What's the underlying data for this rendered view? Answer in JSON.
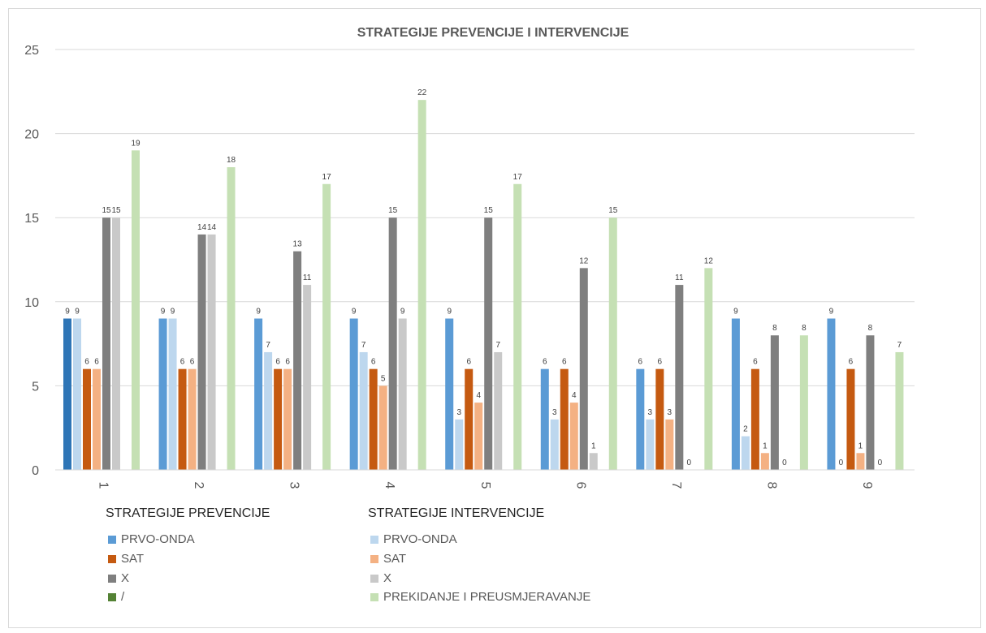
{
  "chart_data": {
    "type": "bar",
    "title": "STRATEGIJE PREVENCIJE I INTERVENCIJE",
    "xlabel": "",
    "ylabel": "",
    "ylim": [
      0,
      25
    ],
    "yticks": [
      "0",
      "5",
      "10",
      "15",
      "20",
      "25"
    ],
    "categories": [
      "1",
      "2",
      "3",
      "4",
      "5",
      "6",
      "7",
      "8",
      "9"
    ],
    "grid": true,
    "legend_position": "bottom",
    "series": [
      {
        "name": "PRVO-ONDA",
        "group": "prevention",
        "color": "#5b9bd5",
        "values": [
          9,
          9,
          9,
          9,
          9,
          6,
          6,
          9,
          9
        ]
      },
      {
        "name": "PRVO-ONDA",
        "group": "intervention",
        "color": "#bdd7ee",
        "values": [
          9,
          9,
          7,
          7,
          3,
          3,
          3,
          2,
          0
        ]
      },
      {
        "name": "SAT",
        "group": "prevention",
        "color": "#c55a11",
        "values": [
          6,
          6,
          6,
          6,
          6,
          6,
          6,
          6,
          6
        ]
      },
      {
        "name": "SAT",
        "group": "intervention",
        "color": "#f4b183",
        "values": [
          6,
          6,
          6,
          5,
          4,
          4,
          3,
          1,
          1
        ]
      },
      {
        "name": "X",
        "group": "prevention",
        "color": "#7f7f7f",
        "values": [
          15,
          14,
          13,
          15,
          15,
          12,
          11,
          8,
          8
        ]
      },
      {
        "name": "X",
        "group": "intervention",
        "color": "#c9c9c9",
        "values": [
          15,
          14,
          11,
          9,
          7,
          1,
          0,
          0,
          0
        ]
      },
      {
        "name": "/",
        "group": "prevention",
        "color": "#548235",
        "values": [
          0,
          0,
          0,
          0,
          0,
          0,
          0,
          0,
          0
        ]
      },
      {
        "name": "PREKIDANJE I PREUSMJERAVANJE",
        "group": "intervention",
        "color": "#c5e0b4",
        "values": [
          19,
          18,
          17,
          22,
          17,
          15,
          12,
          8,
          7
        ]
      }
    ],
    "first_bar_color": "#2e75b6"
  },
  "legend": {
    "prevention_heading": "STRATEGIJE PREVENCIJE",
    "intervention_heading": "STRATEGIJE INTERVENCIJE",
    "prevention": [
      {
        "label": "PRVO-ONDA",
        "color": "#5b9bd5"
      },
      {
        "label": "SAT",
        "color": "#c55a11"
      },
      {
        "label": "X",
        "color": "#7f7f7f"
      },
      {
        "label": "/",
        "color": "#548235"
      }
    ],
    "intervention": [
      {
        "label": "PRVO-ONDA",
        "color": "#bdd7ee"
      },
      {
        "label": "SAT",
        "color": "#f4b183"
      },
      {
        "label": "X",
        "color": "#c9c9c9"
      },
      {
        "label": "PREKIDANJE I PREUSMJERAVANJE",
        "color": "#c5e0b4"
      }
    ]
  }
}
